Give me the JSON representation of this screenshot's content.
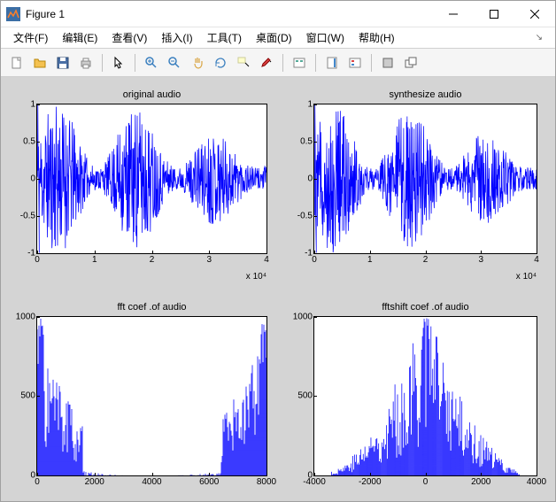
{
  "window": {
    "title": "Figure 1",
    "icon_colors": {
      "bg": "#3b6ea5",
      "accent": "#ff7f27"
    }
  },
  "menu": {
    "items": [
      "文件(F)",
      "编辑(E)",
      "查看(V)",
      "插入(I)",
      "工具(T)",
      "桌面(D)",
      "窗口(W)",
      "帮助(H)"
    ]
  },
  "toolbar": {
    "groups": [
      [
        "new-file-icon",
        "open-folder-icon",
        "save-icon",
        "print-icon"
      ],
      [
        "pointer-icon"
      ],
      [
        "zoom-in-icon",
        "zoom-out-icon",
        "pan-icon",
        "rotate-icon",
        "data-cursor-icon",
        "brush-icon"
      ],
      [
        "link-icon"
      ],
      [
        "colorbar-icon",
        "legend-icon"
      ],
      [
        "dock-icon",
        "undock-icon"
      ]
    ]
  },
  "figure": {
    "bg_color": "#d4d4d4",
    "axes_bg": "#ffffff",
    "line_color": "#0000ff",
    "tick_fontsize": 10,
    "title_fontsize": 11
  },
  "subplots": {
    "tl": {
      "title": "original audio",
      "type": "waveform",
      "xlim": [
        0,
        40000
      ],
      "ylim": [
        -1,
        1
      ],
      "xticks": [
        0,
        10000,
        20000,
        30000,
        40000
      ],
      "xticklabels": [
        "0",
        "1",
        "2",
        "3",
        "4"
      ],
      "xmult": "x 10⁴",
      "yticks": [
        -1,
        -0.5,
        0,
        0.5,
        1
      ],
      "yticklabels": [
        "-1",
        "-0.5",
        "0",
        "0.5",
        "1"
      ],
      "seed": 11
    },
    "tr": {
      "title": "synthesize audio",
      "type": "waveform",
      "xlim": [
        0,
        40000
      ],
      "ylim": [
        -1,
        1
      ],
      "xticks": [
        0,
        10000,
        20000,
        30000,
        40000
      ],
      "xticklabels": [
        "0",
        "1",
        "2",
        "3",
        "4"
      ],
      "xmult": "x 10⁴",
      "yticks": [
        -1,
        -0.5,
        0,
        0.5,
        1
      ],
      "yticklabels": [
        "-1",
        "-0.5",
        "0",
        "0.5",
        "1"
      ],
      "seed": 12
    },
    "bl": {
      "title": "fft coef .of audio",
      "type": "fft",
      "xlim": [
        0,
        8000
      ],
      "ylim": [
        0,
        1000
      ],
      "xticks": [
        0,
        2000,
        4000,
        6000,
        8000
      ],
      "xticklabels": [
        "0",
        "2000",
        "4000",
        "6000",
        "8000"
      ],
      "yticks": [
        0,
        500,
        1000
      ],
      "yticklabels": [
        "0",
        "500",
        "1000"
      ]
    },
    "br": {
      "title": "fftshift coef .of audio",
      "type": "fftshift",
      "xlim": [
        -4000,
        4000
      ],
      "ylim": [
        0,
        1000
      ],
      "xticks": [
        -4000,
        -2000,
        0,
        2000,
        4000
      ],
      "xticklabels": [
        "-4000",
        "-2000",
        "0",
        "2000",
        "4000"
      ],
      "yticks": [
        0,
        500,
        1000
      ],
      "yticklabels": [
        "0",
        "500",
        "1000"
      ]
    }
  }
}
